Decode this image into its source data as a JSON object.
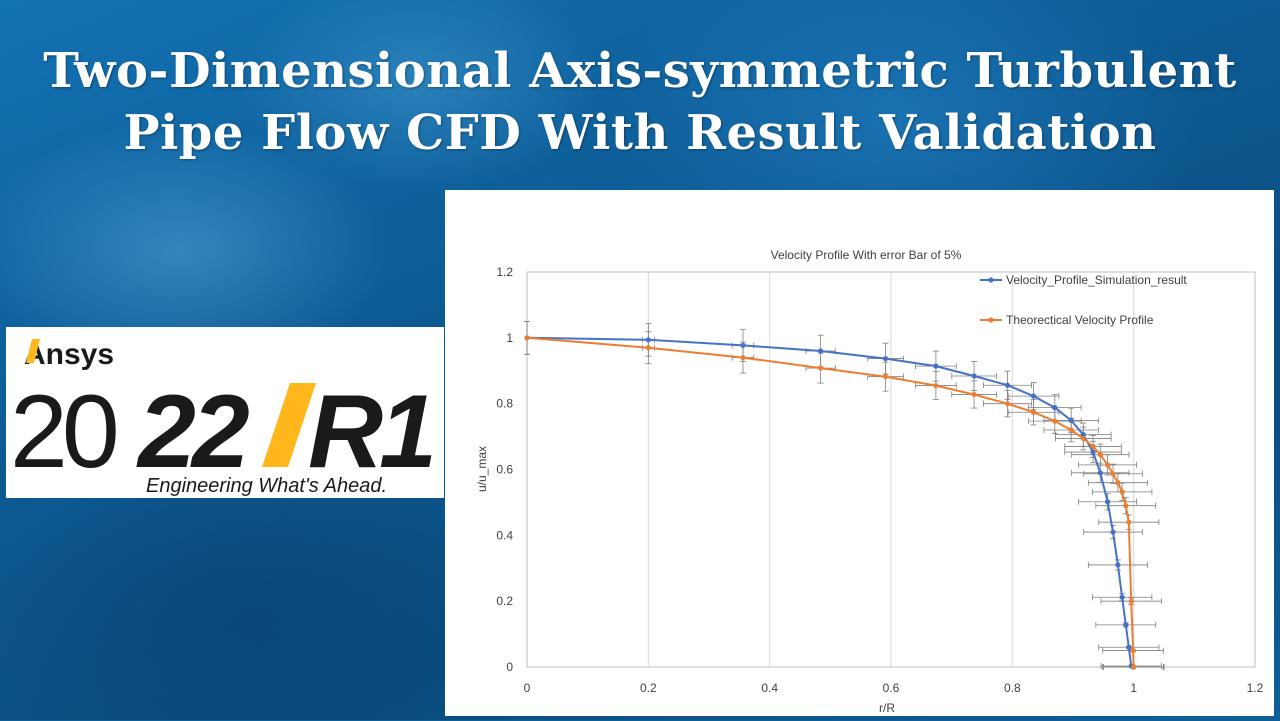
{
  "title": {
    "line1": "Two-Dimensional Axis-symmetric Turbulent",
    "line2": "Pipe Flow CFD With Result Validation"
  },
  "logo": {
    "brand": "Ansys",
    "year_prefix": "20",
    "year_suffix": "22",
    "release": "R1",
    "tagline": "Engineering What's Ahead.",
    "accent_color": "#ffb71b"
  },
  "chart_data": {
    "type": "scatter",
    "title": "Velocity Profile With error Bar of 5%",
    "xlabel": "r/R",
    "ylabel": "u/u_max",
    "xlim": [
      0,
      1.2
    ],
    "ylim": [
      0,
      1.2
    ],
    "x_ticks": [
      "0",
      "0.2",
      "0.4",
      "0.6",
      "0.8",
      "1",
      "1.2"
    ],
    "y_ticks": [
      "0",
      "0.2",
      "0.4",
      "0.6",
      "0.8",
      "1",
      "1.2"
    ],
    "grid": "vertical",
    "legend_position": "top-right",
    "error_bar_percent": 5,
    "series": [
      {
        "name": "Velocity_Profile_Simulation_result",
        "color": "#4472c4",
        "x": [
          0,
          0.2,
          0.356,
          0.484,
          0.591,
          0.674,
          0.737,
          0.792,
          0.835,
          0.87,
          0.897,
          0.917,
          0.933,
          0.945,
          0.957,
          0.966,
          0.974,
          0.981,
          0.987,
          0.992,
          0.996,
          0.999,
          1.0
        ],
        "y": [
          1,
          0.994,
          0.977,
          0.96,
          0.937,
          0.914,
          0.884,
          0.856,
          0.823,
          0.788,
          0.749,
          0.706,
          0.653,
          0.59,
          0.502,
          0.41,
          0.31,
          0.212,
          0.128,
          0.06,
          0.003,
          0.0,
          0.0
        ]
      },
      {
        "name": "Theorectical Velocity Profile",
        "color": "#ed7d31",
        "x": [
          0,
          0.2,
          0.356,
          0.484,
          0.591,
          0.674,
          0.737,
          0.792,
          0.835,
          0.87,
          0.897,
          0.917,
          0.933,
          0.945,
          0.957,
          0.966,
          0.974,
          0.981,
          0.987,
          0.992,
          0.996,
          0.999,
          1.0
        ],
        "y": [
          1,
          0.97,
          0.94,
          0.908,
          0.882,
          0.855,
          0.828,
          0.8,
          0.774,
          0.747,
          0.72,
          0.694,
          0.67,
          0.645,
          0.614,
          0.587,
          0.56,
          0.532,
          0.49,
          0.44,
          0.2,
          0.05,
          0.0
        ]
      }
    ]
  }
}
